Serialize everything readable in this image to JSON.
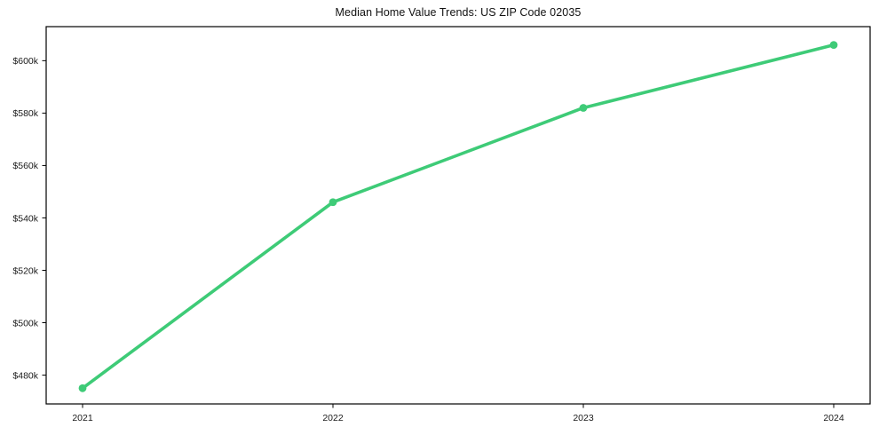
{
  "chart_data": {
    "type": "line",
    "title": "Median Home Value Trends: US ZIP Code 02035",
    "x": [
      "2021",
      "2022",
      "2023",
      "2024"
    ],
    "series": [
      {
        "name": "Median Home Value",
        "values": [
          475000,
          546000,
          582000,
          606000
        ]
      }
    ],
    "values_labels_k": [
      "$475k",
      "$546k",
      "$582k",
      "$606k"
    ],
    "xlabel": "",
    "ylabel": "",
    "ylim": [
      469000,
      613000
    ],
    "yticks": [
      {
        "value": 480000,
        "label": "$480k"
      },
      {
        "value": 500000,
        "label": "$500k"
      },
      {
        "value": 520000,
        "label": "$520k"
      },
      {
        "value": 540000,
        "label": "$540k"
      },
      {
        "value": 560000,
        "label": "$560k"
      },
      {
        "value": 580000,
        "label": "$580k"
      },
      {
        "value": 600000,
        "label": "$600k"
      }
    ],
    "grid": false,
    "legend": "none",
    "marker": "circle",
    "colors": {
      "line": "#3ecb77",
      "marker": "#3ecb77",
      "axis": "#000000",
      "tick_text": "#1a1a1a",
      "title_text": "#111111",
      "background": "#ffffff"
    }
  }
}
